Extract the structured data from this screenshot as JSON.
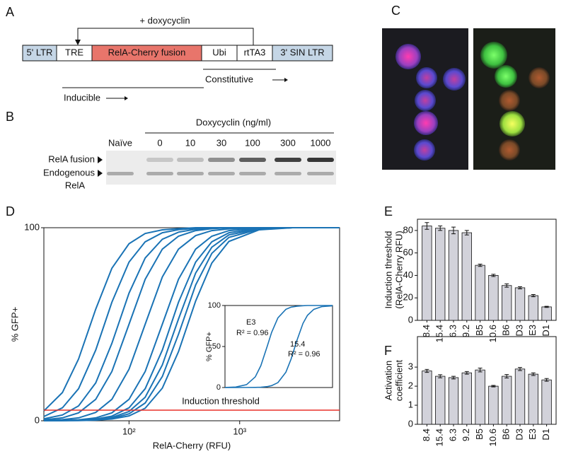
{
  "panel_labels": [
    "A",
    "B",
    "C",
    "D",
    "E",
    "F"
  ],
  "construct": {
    "doxycyclin": "+ doxycyclin",
    "segments": [
      "5' LTR",
      "TRE",
      "RelA-Cherry fusion",
      "Ubi",
      "rtTA3",
      "3' SIN LTR"
    ],
    "constitutive": "Constitutive",
    "inducible": "Inducible"
  },
  "blot": {
    "title": "Doxycyclin (ng/ml)",
    "lanes": [
      "Naïve",
      "0",
      "10",
      "30",
      "100",
      "300",
      "1000"
    ],
    "rows": [
      "RelA fusion",
      "Endogenous",
      "RelA"
    ]
  },
  "chart_data": [
    {
      "type": "line",
      "xscale": "log",
      "xlabel": "RelA-Cherry (RFU)",
      "ylabel": "% GFP+",
      "color": "#1a73b5",
      "x": [
        17,
        25,
        35,
        50,
        70,
        100,
        140,
        200,
        280,
        400,
        560,
        800,
        1500,
        3000,
        8000
      ],
      "xlim": [
        17,
        8000
      ],
      "xticks": [
        {
          "value": 100,
          "label": "10²"
        },
        {
          "value": 1000,
          "label": "10³"
        }
      ],
      "ylim": [
        0,
        100
      ],
      "yticks": [
        0,
        100
      ],
      "threshold": {
        "value": 5.5,
        "label": "Induction threshold",
        "color": "#e8302a"
      },
      "series": [
        {
          "values": [
            5.1,
            14.6,
            32,
            57.8,
            79,
            91.7,
            97,
            98.9,
            99.5,
            100,
            100,
            100,
            100,
            100,
            100
          ]
        },
        {
          "values": [
            2.2,
            6.7,
            16.6,
            36.6,
            61.4,
            82.2,
            92.7,
            97.4,
            99,
            99.7,
            100,
            100,
            100,
            100,
            100
          ]
        },
        {
          "values": [
            1,
            3,
            7.7,
            19.6,
            40.1,
            66.1,
            84.3,
            94,
            97.7,
            99.2,
            99.7,
            100,
            100,
            100,
            100
          ]
        },
        {
          "values": [
            0.5,
            1.5,
            4.1,
            11.1,
            25.5,
            50,
            73.3,
            88.9,
            95.6,
            98.5,
            99.5,
            100,
            100,
            100,
            100
          ]
        },
        {
          "values": [
            0.2,
            0.6,
            1.5,
            4.3,
            11.1,
            26.7,
            50,
            74.5,
            88.9,
            95.9,
            98.5,
            99.4,
            100,
            100,
            100
          ]
        },
        {
          "values": [
            0.1,
            0.2,
            0.5,
            1.5,
            4.1,
            11.1,
            25.5,
            50,
            73.3,
            88.9,
            95.6,
            98.5,
            99.8,
            100,
            100
          ]
        },
        {
          "values": [
            0.1,
            0.1,
            0.3,
            0.9,
            2.4,
            6.7,
            16.6,
            36.6,
            61.4,
            82.2,
            92.7,
            97.4,
            99.6,
            100,
            100
          ]
        },
        {
          "values": [
            0.1,
            0.1,
            0.2,
            0.6,
            1.7,
            4.8,
            12.2,
            28.9,
            52.7,
            76.5,
            89.9,
            96.3,
            99.4,
            100,
            100
          ]
        },
        {
          "values": [
            0,
            0.1,
            0.2,
            0.5,
            1.3,
            3.6,
            9.2,
            22.9,
            44.8,
            70.3,
            86.7,
            95,
            99.2,
            100,
            100
          ]
        },
        {
          "values": [
            0,
            0.1,
            0.1,
            0.3,
            0.9,
            2.5,
            6.5,
            16.9,
            35.8,
            62,
            81.7,
            92.9,
            98.9,
            100,
            100
          ]
        }
      ]
    },
    {
      "type": "line",
      "xscale": "log",
      "ylabel": "% GFP+",
      "color": "#1a73b5",
      "x": [
        10,
        20,
        40,
        70,
        100,
        150,
        200,
        300,
        500,
        700,
        1000,
        1500,
        2000,
        3000,
        5000,
        10000
      ],
      "xlim": [
        10,
        10000
      ],
      "ylim": [
        0,
        100
      ],
      "yticks": [
        0,
        50,
        100
      ],
      "annotations": [
        "E3",
        "R² = 0.96",
        "15.4",
        "R² = 0.96"
      ],
      "series": [
        {
          "values": [
            0.1,
            0.6,
            3.5,
            13,
            26.6,
            50,
            67.2,
            85,
            95.3,
            98,
            99.1,
            99.7,
            100,
            100,
            100,
            100
          ]
        },
        {
          "values": [
            0,
            0,
            0.1,
            0.2,
            0.4,
            1.1,
            2.3,
            6,
            18.7,
            34.8,
            56.6,
            78.2,
            88,
            95.3,
            98.6,
            99.6
          ]
        }
      ]
    },
    {
      "type": "bar",
      "ylabel": [
        "Induction threshold",
        "(RelA-Cherry RFU)"
      ],
      "color": "#d2d2da",
      "categories": [
        "8.4",
        "15.4",
        "6.3",
        "9.2",
        "B5",
        "10.6",
        "B6",
        "D3",
        "E3",
        "D1"
      ],
      "values": [
        84,
        82,
        80,
        78,
        49,
        40,
        31,
        29,
        22,
        12
      ],
      "errors": [
        3,
        2,
        3,
        2,
        1,
        1,
        1.5,
        1,
        1,
        0.5
      ],
      "ylim": [
        0,
        90
      ],
      "yticks": [
        0,
        20,
        40,
        60,
        80
      ]
    },
    {
      "type": "bar",
      "ylabel": [
        "Activation",
        "coefficient"
      ],
      "color": "#d2d2da",
      "categories": [
        "8.4",
        "15.4",
        "6.3",
        "9.2",
        "B5",
        "10.6",
        "B6",
        "D3",
        "E3",
        "D1"
      ],
      "values": [
        2.8,
        2.52,
        2.45,
        2.7,
        2.85,
        2.0,
        2.52,
        2.9,
        2.63,
        2.33
      ],
      "errors": [
        0.08,
        0.08,
        0.07,
        0.07,
        0.1,
        0.04,
        0.09,
        0.08,
        0.07,
        0.07
      ],
      "ylim": [
        0,
        4.6
      ],
      "yticks": [
        0,
        1,
        2,
        3
      ]
    }
  ]
}
